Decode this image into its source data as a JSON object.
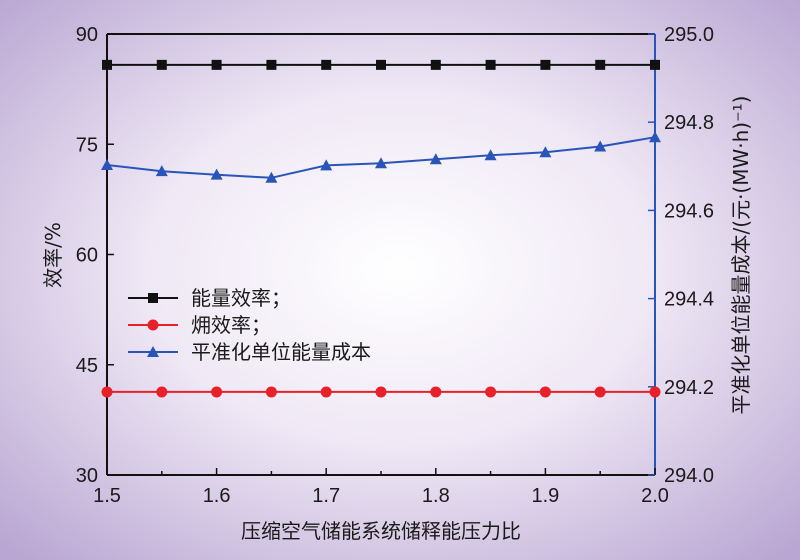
{
  "chart_data": {
    "type": "line",
    "title": "",
    "xlabel": "压缩空气储能系统储释能压力比",
    "ylabel_left": "效率/%",
    "ylabel_right": "平准化单位能量成本/(元·(MW·h)⁻¹)",
    "x": [
      1.5,
      1.55,
      1.6,
      1.65,
      1.7,
      1.75,
      1.8,
      1.85,
      1.9,
      1.95,
      2.0
    ],
    "xlim": [
      1.5,
      2.0
    ],
    "xticks": [
      "1.5",
      "1.6",
      "1.7",
      "1.8",
      "1.9",
      "2.0"
    ],
    "ylim_left": [
      30,
      90
    ],
    "yticks_left": [
      "30",
      "45",
      "60",
      "75",
      "90"
    ],
    "ylim_right": [
      294.0,
      295.0
    ],
    "yticks_right": [
      "294.0",
      "294.2",
      "294.4",
      "294.6",
      "294.8",
      "295.0"
    ],
    "grid": false,
    "legend_position": "center-left",
    "series": [
      {
        "name": "能量效率；",
        "axis": "left",
        "marker": "square",
        "color": "#111111",
        "values": [
          85.8,
          85.8,
          85.8,
          85.8,
          85.8,
          85.8,
          85.8,
          85.8,
          85.8,
          85.8,
          85.8
        ]
      },
      {
        "name": "㶲效率；",
        "axis": "left",
        "marker": "circle",
        "color": "#e8202a",
        "values": [
          41.3,
          41.3,
          41.3,
          41.3,
          41.3,
          41.3,
          41.3,
          41.3,
          41.3,
          41.3,
          41.3
        ]
      },
      {
        "name": "平准化单位能量成本",
        "axis": "right",
        "marker": "triangle",
        "color": "#2a55b8",
        "values": [
          294.703,
          294.689,
          294.681,
          294.674,
          294.702,
          294.707,
          294.716,
          294.725,
          294.732,
          294.745,
          294.766
        ]
      }
    ]
  }
}
